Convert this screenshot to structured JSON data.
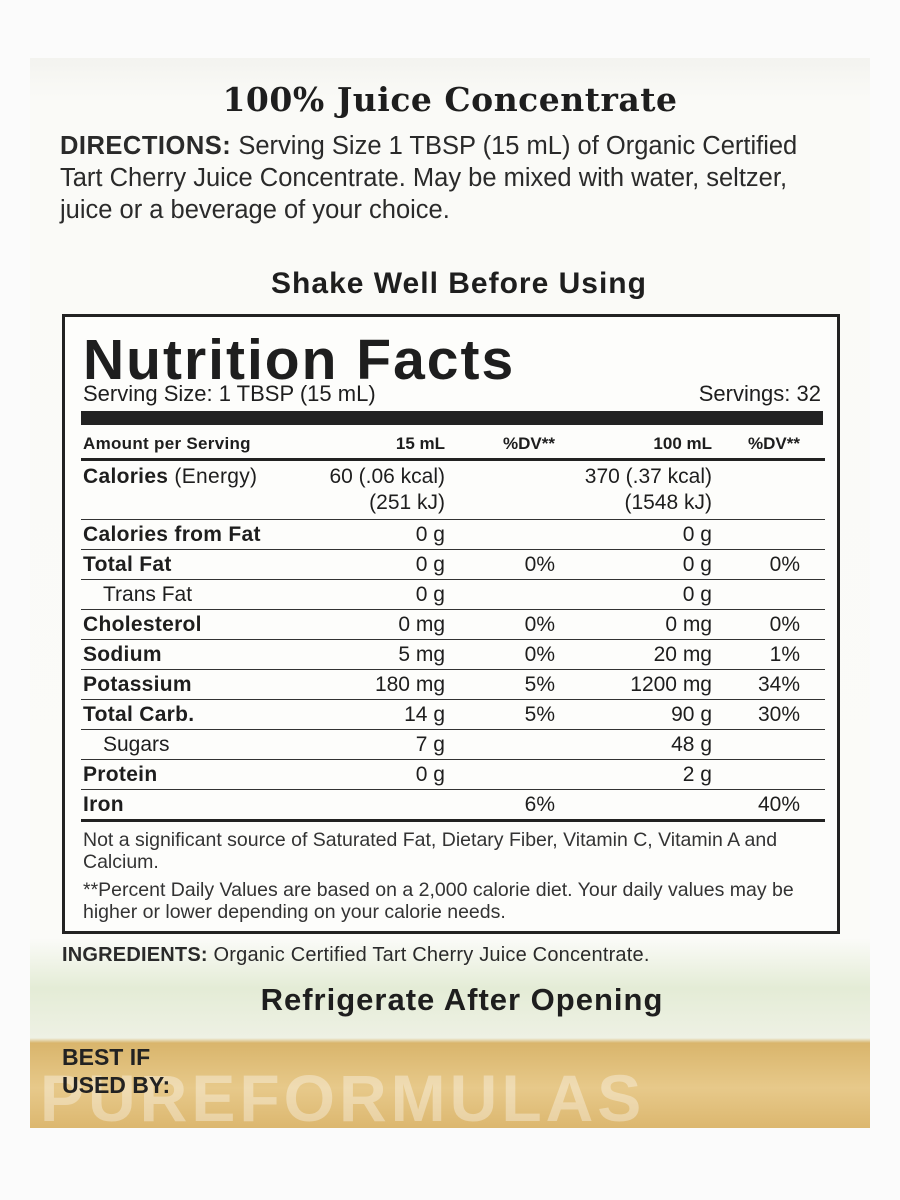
{
  "header": {
    "title": "100% Juice Concentrate"
  },
  "directions": {
    "label": "DIRECTIONS:",
    "text": "Serving Size 1 TBSP (15 mL) of Organic Certified Tart Cherry Juice Concentrate. May be mixed with water, seltzer, juice or a beverage of your choice."
  },
  "shake_note": "Shake Well Before Using",
  "nutrition": {
    "title": "Nutrition Facts",
    "serving_size": "Serving Size: 1 TBSP (15 mL)",
    "servings": "Servings: 32",
    "columns": [
      "Amount per Serving",
      "15 mL",
      "%DV**",
      "100 mL",
      "%DV**"
    ],
    "calories": {
      "label": "Calories",
      "qualifier": "(Energy)",
      "amount_15": [
        "60 (.06 kcal)",
        "(251 kJ)"
      ],
      "amount_100": [
        "370 (.37 kcal)",
        "(1548 kJ)"
      ]
    },
    "rows": [
      {
        "cells": [
          "Calories from Fat",
          "0 g",
          null,
          "0 g",
          null
        ]
      },
      {
        "cells": [
          "Total Fat",
          "0 g",
          "0%",
          "0 g",
          "0%"
        ],
        "sub": [
          [
            "Trans Fat",
            "0 g",
            null,
            "0 g",
            null
          ]
        ]
      },
      {
        "cells": [
          "Cholesterol",
          "0 mg",
          "0%",
          "0 mg",
          "0%"
        ]
      },
      {
        "cells": [
          "Sodium",
          "5 mg",
          "0%",
          "20 mg",
          "1%"
        ]
      },
      {
        "cells": [
          "Potassium",
          "180 mg",
          "5%",
          "1200 mg",
          "34%"
        ]
      },
      {
        "cells": [
          "Total Carb.",
          "14 g",
          "5%",
          "90 g",
          "30%"
        ],
        "sub": [
          [
            "Sugars",
            "7 g",
            null,
            "48 g",
            null
          ]
        ]
      },
      {
        "cells": [
          "Protein",
          "0 g",
          null,
          "2 g",
          null
        ]
      },
      {
        "cells": [
          "Iron",
          null,
          "6%",
          null,
          "40%"
        ]
      }
    ],
    "footnotes": [
      "Not a significant source of Saturated Fat, Dietary Fiber, Vitamin C, Vitamin A and Calcium.",
      "**Percent Daily Values are based on a 2,000 calorie diet. Your daily values may be higher or lower depending on your calorie needs."
    ]
  },
  "ingredients": {
    "label": "INGREDIENTS:",
    "text": "Organic Certified Tart Cherry Juice Concentrate."
  },
  "storage_note": "Refrigerate After Opening",
  "best_by": [
    "BEST IF",
    "USED BY:"
  ],
  "watermark": "PUREFORMULAS"
}
